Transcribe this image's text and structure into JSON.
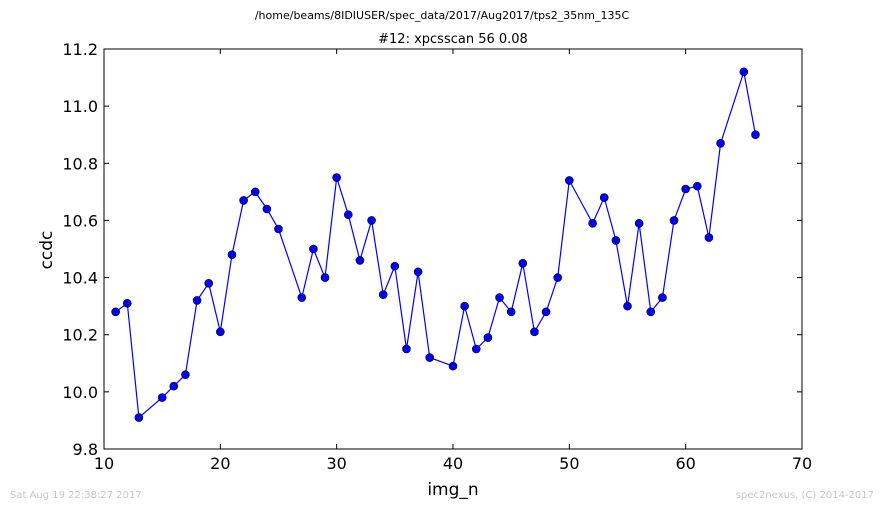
{
  "header": {
    "path": "/home/beams/8IDIUSER/spec_data/2017/Aug2017/tps2_35nm_135C",
    "title": "#12: xpcsscan 56 0.08"
  },
  "footer": {
    "timestamp": "Sat Aug 19 22:38:27 2017",
    "credit": "spec2nexus, (C) 2014-2017"
  },
  "chart_data": {
    "type": "line",
    "title": "#12: xpcsscan 56 0.08",
    "xlabel": "img_n",
    "ylabel": "ccdc",
    "xlim": [
      10,
      70
    ],
    "ylim": [
      9.8,
      11.2
    ],
    "xticks": [
      10,
      20,
      30,
      40,
      50,
      60,
      70
    ],
    "yticks": [
      9.8,
      10.0,
      10.2,
      10.4,
      10.6,
      10.8,
      11.0,
      11.2
    ],
    "xtick_labels": [
      "10",
      "20",
      "30",
      "40",
      "50",
      "60",
      "70"
    ],
    "ytick_labels": [
      "9.8",
      "10.0",
      "10.2",
      "10.4",
      "10.6",
      "10.8",
      "11.0",
      "11.2"
    ],
    "grid": false,
    "series": [
      {
        "color": "#0000ff",
        "marker": "circle",
        "x": [
          11,
          12,
          13,
          15,
          16,
          17,
          18,
          19,
          20,
          21,
          22,
          23,
          24,
          25,
          27,
          28,
          29,
          30,
          31,
          32,
          33,
          34,
          35,
          36,
          37,
          38,
          40,
          41,
          42,
          43,
          44,
          45,
          46,
          47,
          48,
          49,
          50,
          52,
          53,
          54,
          55,
          56,
          57,
          58,
          59,
          60,
          61,
          62,
          63,
          65,
          66
        ],
        "y": [
          10.28,
          10.31,
          9.91,
          9.98,
          10.02,
          10.06,
          10.32,
          10.38,
          10.21,
          10.48,
          10.67,
          10.7,
          10.64,
          10.57,
          10.33,
          10.5,
          10.4,
          10.75,
          10.62,
          10.46,
          10.6,
          10.34,
          10.44,
          10.15,
          10.42,
          10.12,
          10.09,
          10.3,
          10.15,
          10.19,
          10.33,
          10.28,
          10.45,
          10.21,
          10.28,
          10.4,
          10.74,
          10.59,
          10.68,
          10.53,
          10.3,
          10.59,
          10.28,
          10.33,
          10.6,
          10.71,
          10.72,
          10.54,
          10.87,
          11.12,
          10.9
        ]
      }
    ]
  }
}
